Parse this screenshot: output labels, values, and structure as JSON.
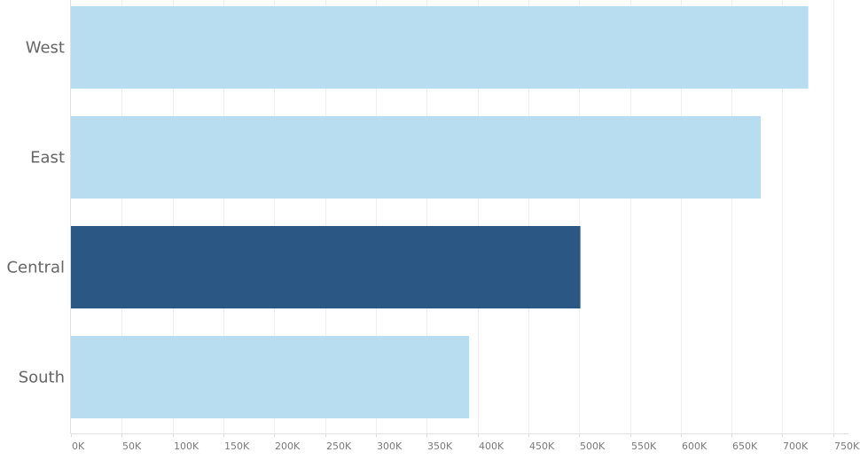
{
  "chart_data": {
    "type": "bar",
    "orientation": "horizontal",
    "title": "",
    "xlabel": "",
    "ylabel": "",
    "categories": [
      "West",
      "East",
      "Central",
      "South"
    ],
    "values": [
      725458,
      678781,
      501240,
      391722
    ],
    "highlighted_category": "Central",
    "xlim": [
      0,
      765000
    ],
    "x_ticks": [
      0,
      50000,
      100000,
      150000,
      200000,
      250000,
      300000,
      350000,
      400000,
      450000,
      500000,
      550000,
      600000,
      650000,
      700000,
      750000
    ],
    "x_tick_labels": [
      "0K",
      "50K",
      "100K",
      "150K",
      "200K",
      "250K",
      "300K",
      "350K",
      "400K",
      "450K",
      "500K",
      "550K",
      "600K",
      "650K",
      "700K",
      "750K"
    ],
    "grid": true,
    "colors": {
      "bar": "#b9ddf0",
      "bar_highlight": "#2a5783"
    }
  }
}
